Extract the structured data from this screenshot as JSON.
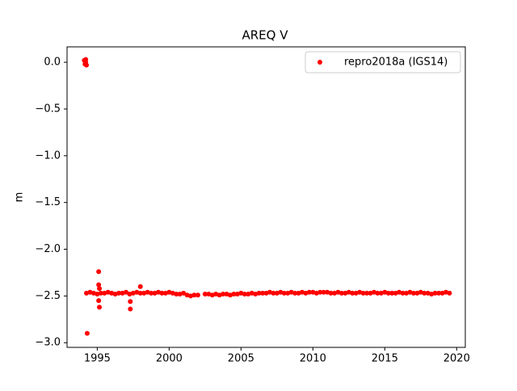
{
  "chart_data": {
    "type": "scatter",
    "title": "AREQ V",
    "y_label": "m",
    "x": [
      1994.1,
      1994.15,
      1994.2,
      1994.2,
      1994.25,
      1994.3,
      1995.1,
      1995.1,
      1995.15,
      1995.1,
      1995.15,
      1997.3,
      1997.3,
      1998,
      1994.25,
      1994.5,
      1994.75,
      1995,
      1995.25,
      1995.5,
      1995.75,
      1996,
      1996.25,
      1996.5,
      1996.75,
      1997,
      1997.25,
      1997.5,
      1997.75,
      1998,
      1998.25,
      1998.5,
      1998.75,
      1999,
      1999.25,
      1999.5,
      1999.75,
      2000,
      2000.25,
      2000.5,
      2000.75,
      2001,
      2001.25,
      2001.5,
      2001.75,
      2002,
      2002.5,
      2002.75,
      2003,
      2003.25,
      2003.5,
      2003.75,
      2004,
      2004.25,
      2004.5,
      2004.75,
      2005,
      2005.25,
      2005.5,
      2005.75,
      2006,
      2006.25,
      2006.5,
      2006.75,
      2007,
      2007.25,
      2007.5,
      2007.75,
      2008,
      2008.25,
      2008.5,
      2008.75,
      2009,
      2009.25,
      2009.5,
      2009.75,
      2010,
      2010.25,
      2010.5,
      2010.75,
      2011,
      2011.25,
      2011.5,
      2011.75,
      2012,
      2012.25,
      2012.5,
      2012.75,
      2013,
      2013.25,
      2013.5,
      2013.75,
      2014,
      2014.25,
      2014.5,
      2014.75,
      2015,
      2015.25,
      2015.5,
      2015.75,
      2016,
      2016.25,
      2016.5,
      2016.75,
      2017,
      2017.25,
      2017.5,
      2017.75,
      2018,
      2018.25,
      2018.5,
      2018.75,
      2019,
      2019.25,
      2019.5
    ],
    "series": [
      {
        "name": "repro2018a (IGS14)",
        "color": "#ff0000",
        "values": [
          0.02,
          -0.02,
          0.03,
          0.0,
          -0.03,
          -2.9,
          -2.24,
          -2.38,
          -2.42,
          -2.55,
          -2.62,
          -2.56,
          -2.64,
          -2.4,
          -2.47,
          -2.46,
          -2.47,
          -2.48,
          -2.47,
          -2.47,
          -2.46,
          -2.47,
          -2.48,
          -2.47,
          -2.47,
          -2.46,
          -2.48,
          -2.47,
          -2.46,
          -2.47,
          -2.47,
          -2.46,
          -2.47,
          -2.47,
          -2.46,
          -2.47,
          -2.47,
          -2.46,
          -2.47,
          -2.48,
          -2.48,
          -2.47,
          -2.49,
          -2.5,
          -2.49,
          -2.49,
          -2.48,
          -2.48,
          -2.49,
          -2.48,
          -2.49,
          -2.48,
          -2.48,
          -2.49,
          -2.48,
          -2.48,
          -2.47,
          -2.48,
          -2.48,
          -2.47,
          -2.48,
          -2.47,
          -2.47,
          -2.47,
          -2.46,
          -2.47,
          -2.47,
          -2.46,
          -2.47,
          -2.47,
          -2.46,
          -2.47,
          -2.47,
          -2.46,
          -2.47,
          -2.46,
          -2.46,
          -2.47,
          -2.46,
          -2.46,
          -2.46,
          -2.47,
          -2.47,
          -2.46,
          -2.47,
          -2.47,
          -2.46,
          -2.47,
          -2.47,
          -2.46,
          -2.47,
          -2.47,
          -2.47,
          -2.46,
          -2.47,
          -2.47,
          -2.46,
          -2.47,
          -2.47,
          -2.47,
          -2.46,
          -2.47,
          -2.47,
          -2.46,
          -2.47,
          -2.47,
          -2.46,
          -2.47,
          -2.47,
          -2.48,
          -2.47,
          -2.47,
          -2.47,
          -2.46,
          -2.47
        ]
      }
    ],
    "xlim": [
      1992.9,
      2020.6
    ],
    "ylim": [
      -3.05,
      0.165
    ],
    "xticks": [
      1995,
      2000,
      2005,
      2010,
      2015,
      2020
    ],
    "yticks": [
      {
        "value": 0.0,
        "label": "0.0"
      },
      {
        "value": -0.5,
        "label": "−0.5"
      },
      {
        "value": -1.0,
        "label": "−1.0"
      },
      {
        "value": -1.5,
        "label": "−1.5"
      },
      {
        "value": -2.0,
        "label": "−2.0"
      },
      {
        "value": -2.5,
        "label": "−2.5"
      },
      {
        "value": -3.0,
        "label": "−3.0"
      }
    ],
    "legend": "upper right"
  }
}
